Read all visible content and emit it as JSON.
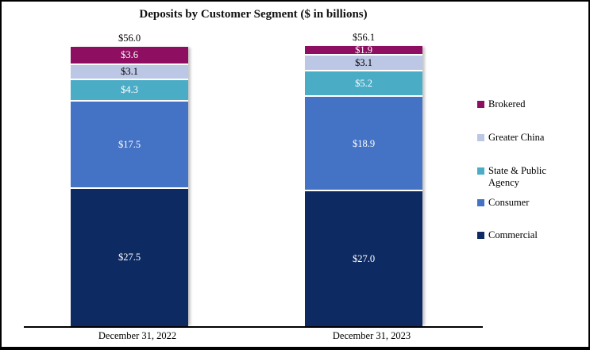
{
  "chart_data": {
    "type": "bar",
    "stacked": true,
    "title": "Deposits by Customer Segment ($ in billions)",
    "categories": [
      "December 31, 2022",
      "December 31, 2023"
    ],
    "totals": [
      "$56.0",
      "$56.1"
    ],
    "ylim": [
      0,
      56.1
    ],
    "grid": false,
    "axis": {
      "baseline_color": "#000000"
    },
    "series": [
      {
        "name": "Commercial",
        "color": "#0E2A63",
        "label_color": "#FFFFFF",
        "values": [
          27.5,
          27.0
        ],
        "labels": [
          "$27.5",
          "$27.0"
        ]
      },
      {
        "name": "Consumer",
        "color": "#4472C4",
        "label_color": "#FFFFFF",
        "values": [
          17.5,
          18.9
        ],
        "labels": [
          "$17.5",
          "$18.9"
        ]
      },
      {
        "name": "State & Public Agency",
        "color": "#4BACC6",
        "label_color": "#FFFFFF",
        "values": [
          4.3,
          5.2
        ],
        "labels": [
          "$4.3",
          "$5.2"
        ]
      },
      {
        "name": "Greater China",
        "color": "#BCC7E5",
        "label_color": "#000000",
        "values": [
          3.1,
          3.1
        ],
        "labels": [
          "$3.1",
          "$3.1"
        ]
      },
      {
        "name": "Brokered",
        "color": "#8E0F61",
        "label_color": "#FFFFFF",
        "values": [
          3.6,
          1.9
        ],
        "labels": [
          "$3.6",
          "$1.9"
        ]
      }
    ],
    "legend": {
      "position": "right",
      "items": [
        {
          "label": "Brokered",
          "color": "#8E0F61"
        },
        {
          "label": "Greater China",
          "color": "#BCC7E5"
        },
        {
          "label": "State & Public Agency",
          "color": "#4BACC6"
        },
        {
          "label": "Consumer",
          "color": "#4472C4"
        },
        {
          "label": "Commercial",
          "color": "#0E2A63"
        }
      ]
    }
  },
  "frame": {
    "border_color": "#000000",
    "background": "#FFFFFF"
  }
}
